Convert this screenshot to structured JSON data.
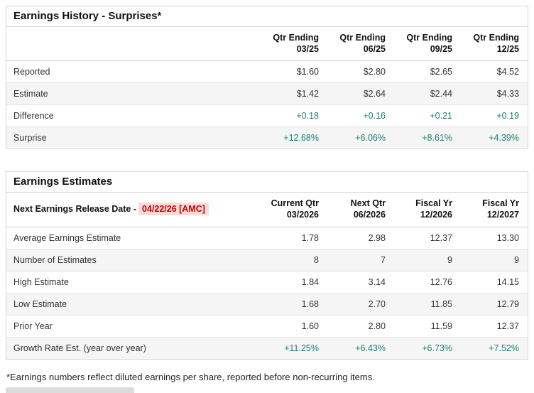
{
  "colors": {
    "positive_green": "#1e8171",
    "alert_red": "#c40000",
    "alert_highlight_bg": "#fbdbd8",
    "row_stripe": "#f5f5f5",
    "border": "#d6d6d6"
  },
  "earnings_history": {
    "title": "Earnings History - Surprises*",
    "columns": [
      {
        "line1": "Qtr Ending",
        "line2": "03/25"
      },
      {
        "line1": "Qtr Ending",
        "line2": "06/25"
      },
      {
        "line1": "Qtr Ending",
        "line2": "09/25"
      },
      {
        "line1": "Qtr Ending",
        "line2": "12/25"
      }
    ],
    "rows": [
      {
        "label": "Reported",
        "values": [
          "$1.60",
          "$2.80",
          "$2.65",
          "$4.52"
        ]
      },
      {
        "label": "Estimate",
        "values": [
          "$1.42",
          "$2.64",
          "$2.44",
          "$4.33"
        ]
      },
      {
        "label": "Difference",
        "values": [
          "+0.18",
          "+0.16",
          "+0.21",
          "+0.19"
        ]
      },
      {
        "label": "Surprise",
        "values": [
          "+12.68%",
          "+6.06%",
          "+8.61%",
          "+4.39%"
        ]
      }
    ]
  },
  "earnings_estimates": {
    "title": "Earnings Estimates",
    "release_date_label": "Next Earnings Release Date -",
    "release_date_value": "04/22/26 [AMC]",
    "columns": [
      {
        "line1": "Current Qtr",
        "line2": "03/2026"
      },
      {
        "line1": "Next Qtr",
        "line2": "06/2026"
      },
      {
        "line1": "Fiscal Yr",
        "line2": "12/2026"
      },
      {
        "line1": "Fiscal Yr",
        "line2": "12/2027"
      }
    ],
    "rows": [
      {
        "label": "Average Earnings Estimate",
        "values": [
          "1.78",
          "2.98",
          "12.37",
          "13.30"
        ]
      },
      {
        "label": "Number of Estimates",
        "values": [
          "8",
          "7",
          "9",
          "9"
        ]
      },
      {
        "label": "High Estimate",
        "values": [
          "1.84",
          "3.14",
          "12.76",
          "14.15"
        ]
      },
      {
        "label": "Low Estimate",
        "values": [
          "1.68",
          "2.70",
          "11.85",
          "12.79"
        ]
      },
      {
        "label": "Prior Year",
        "values": [
          "1.60",
          "2.80",
          "11.59",
          "12.37"
        ]
      },
      {
        "label": "Growth Rate Est. (year over year)",
        "values": [
          "+11.25%",
          "+6.43%",
          "+6.73%",
          "+7.52%"
        ]
      }
    ]
  },
  "footnote": "*Earnings numbers reflect diluted earnings per share, reported before non-recurring items."
}
